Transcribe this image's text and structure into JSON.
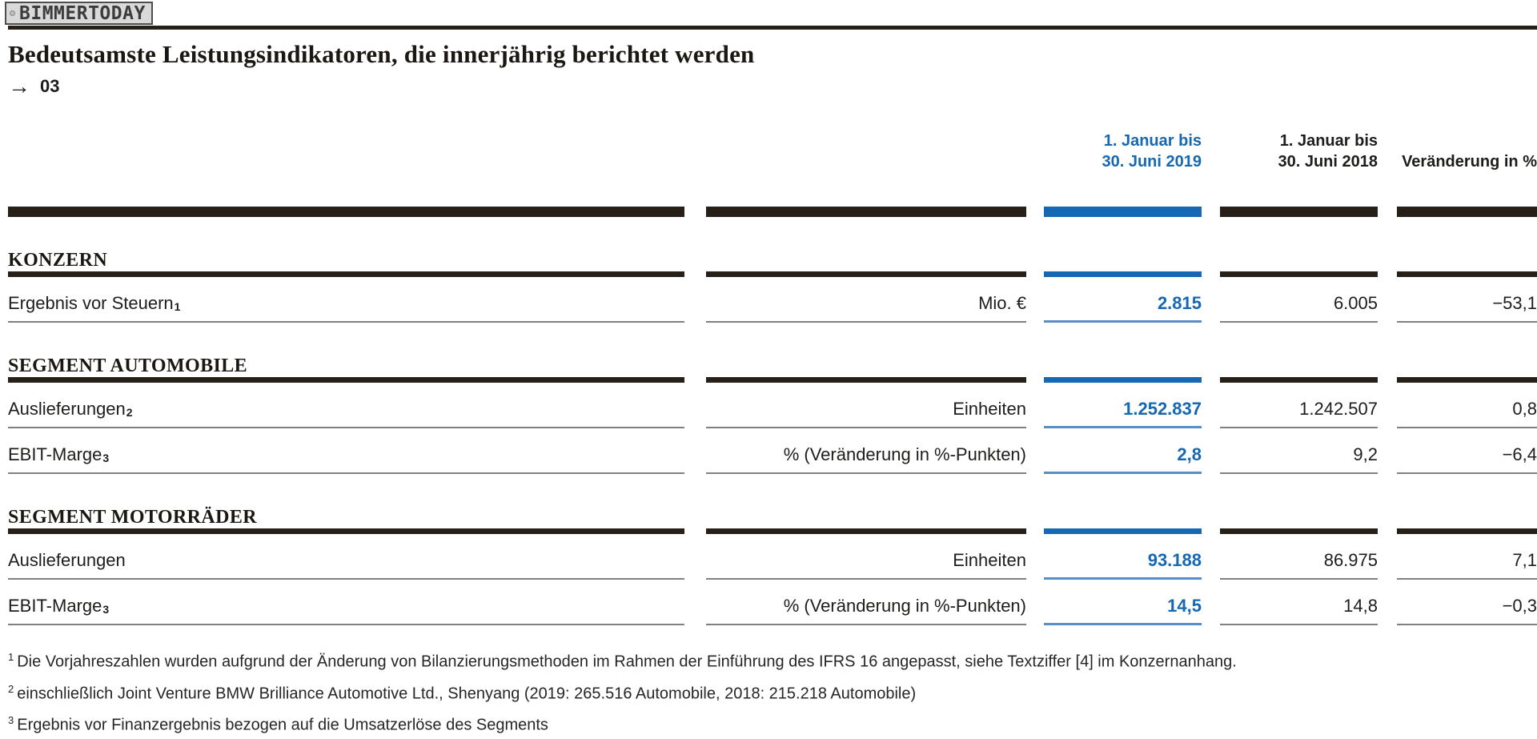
{
  "watermark": {
    "label": "BIMMERTODAY"
  },
  "page": {
    "title": "Bedeutsamste Leistungsindikatoren, die innerjährig berichtet werden",
    "arrow": "→",
    "figure_ref": "03"
  },
  "colors": {
    "accent_blue": "#1568b1",
    "accent_blue_underline": "#5a8ec9",
    "bar_dark": "#262019",
    "thin_line_gray": "#818181"
  },
  "table": {
    "columns": [
      {
        "line1": "1. Januar bis",
        "line2": "30. Juni 2019",
        "highlighted": true
      },
      {
        "line1": "1. Januar bis",
        "line2": "30. Juni 2018",
        "highlighted": false
      },
      {
        "label": "Veränderung in %"
      }
    ],
    "sections": [
      {
        "heading": "KONZERN",
        "rows": [
          {
            "label": "Ergebnis vor Steuern",
            "footnote": "1",
            "unit": "Mio. €",
            "v2019": "2.815",
            "v2018": "6.005",
            "change": "−53,1"
          }
        ]
      },
      {
        "heading": "SEGMENT AUTOMOBILE",
        "rows": [
          {
            "label": "Auslieferungen",
            "footnote": "2",
            "unit": "Einheiten",
            "v2019": "1.252.837",
            "v2018": "1.242.507",
            "change": "0,8"
          },
          {
            "label": "EBIT-Marge",
            "footnote": "3",
            "unit": "% (Veränderung in %-Punkten)",
            "v2019": "2,8",
            "v2018": "9,2",
            "change": "−6,4"
          }
        ]
      },
      {
        "heading": "SEGMENT MOTORRÄDER",
        "rows": [
          {
            "label": "Auslieferungen",
            "footnote": "",
            "unit": "Einheiten",
            "v2019": "93.188",
            "v2018": "86.975",
            "change": "7,1"
          },
          {
            "label": "EBIT-Marge",
            "footnote": "3",
            "unit": "% (Veränderung in %-Punkten)",
            "v2019": "14,5",
            "v2018": "14,8",
            "change": "−0,3"
          }
        ]
      }
    ]
  },
  "footnotes": [
    {
      "marker": "1",
      "text": "Die Vorjahreszahlen wurden aufgrund der Änderung von Bilanzierungsmethoden im Rahmen der Einführung des IFRS 16 angepasst, siehe Textziffer [4] im Konzernanhang."
    },
    {
      "marker": "2",
      "text": "einschließlich Joint Venture BMW Brilliance Automotive Ltd., Shenyang (2019: 265.516 Automobile, 2018: 215.218 Automobile)"
    },
    {
      "marker": "3",
      "text": "Ergebnis vor Finanzergebnis bezogen auf die Umsatzerlöse des Segments"
    }
  ]
}
